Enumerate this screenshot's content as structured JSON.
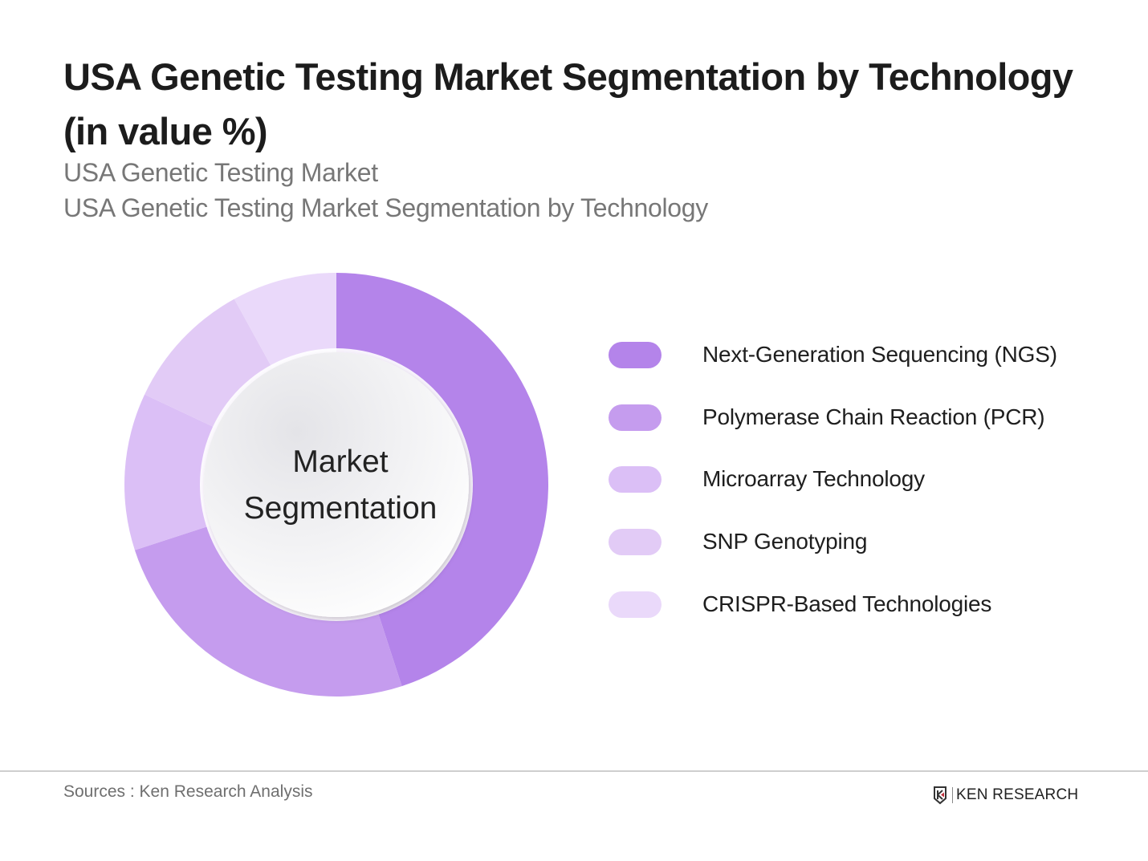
{
  "header": {
    "title": "USA Genetic Testing Market Segmentation by Technology (in value %)",
    "subtitle_1": "USA Genetic Testing Market",
    "subtitle_2": "USA Genetic Testing Market Segmentation by Technology"
  },
  "center_label": {
    "line1": "Market",
    "line2": "Segmentation"
  },
  "legend": [
    {
      "label": "Next-Generation Sequencing (NGS)",
      "color": "#b484ea"
    },
    {
      "label": "Polymerase Chain Reaction (PCR)",
      "color": "#c59cee"
    },
    {
      "label": "Microarray Technology",
      "color": "#dbbff6"
    },
    {
      "label": "SNP Genotyping",
      "color": "#e2cbf6"
    },
    {
      "label": "CRISPR-Based Technologies",
      "color": "#ead9fa"
    }
  ],
  "footer": {
    "source": "Sources : Ken Research Analysis",
    "brand": "KEN RESEARCH"
  },
  "chart_data": {
    "type": "pie",
    "variant": "donut",
    "title": "USA Genetic Testing Market Segmentation by Technology (in value %)",
    "subtitle": "USA Genetic Testing Market Segmentation by Technology",
    "center_text": "Market Segmentation",
    "categories": [
      "Next-Generation Sequencing (NGS)",
      "Polymerase Chain Reaction (PCR)",
      "Microarray Technology",
      "SNP Genotyping",
      "CRISPR-Based Technologies"
    ],
    "values": [
      45,
      25,
      12,
      10,
      8
    ],
    "unit": "%",
    "colors": [
      "#b484ea",
      "#c59cee",
      "#dbbff6",
      "#e2cbf6",
      "#ead9fa"
    ],
    "start_angle": "12 o'clock, clockwise",
    "data_labels_shown": false,
    "legend_position": "right"
  }
}
